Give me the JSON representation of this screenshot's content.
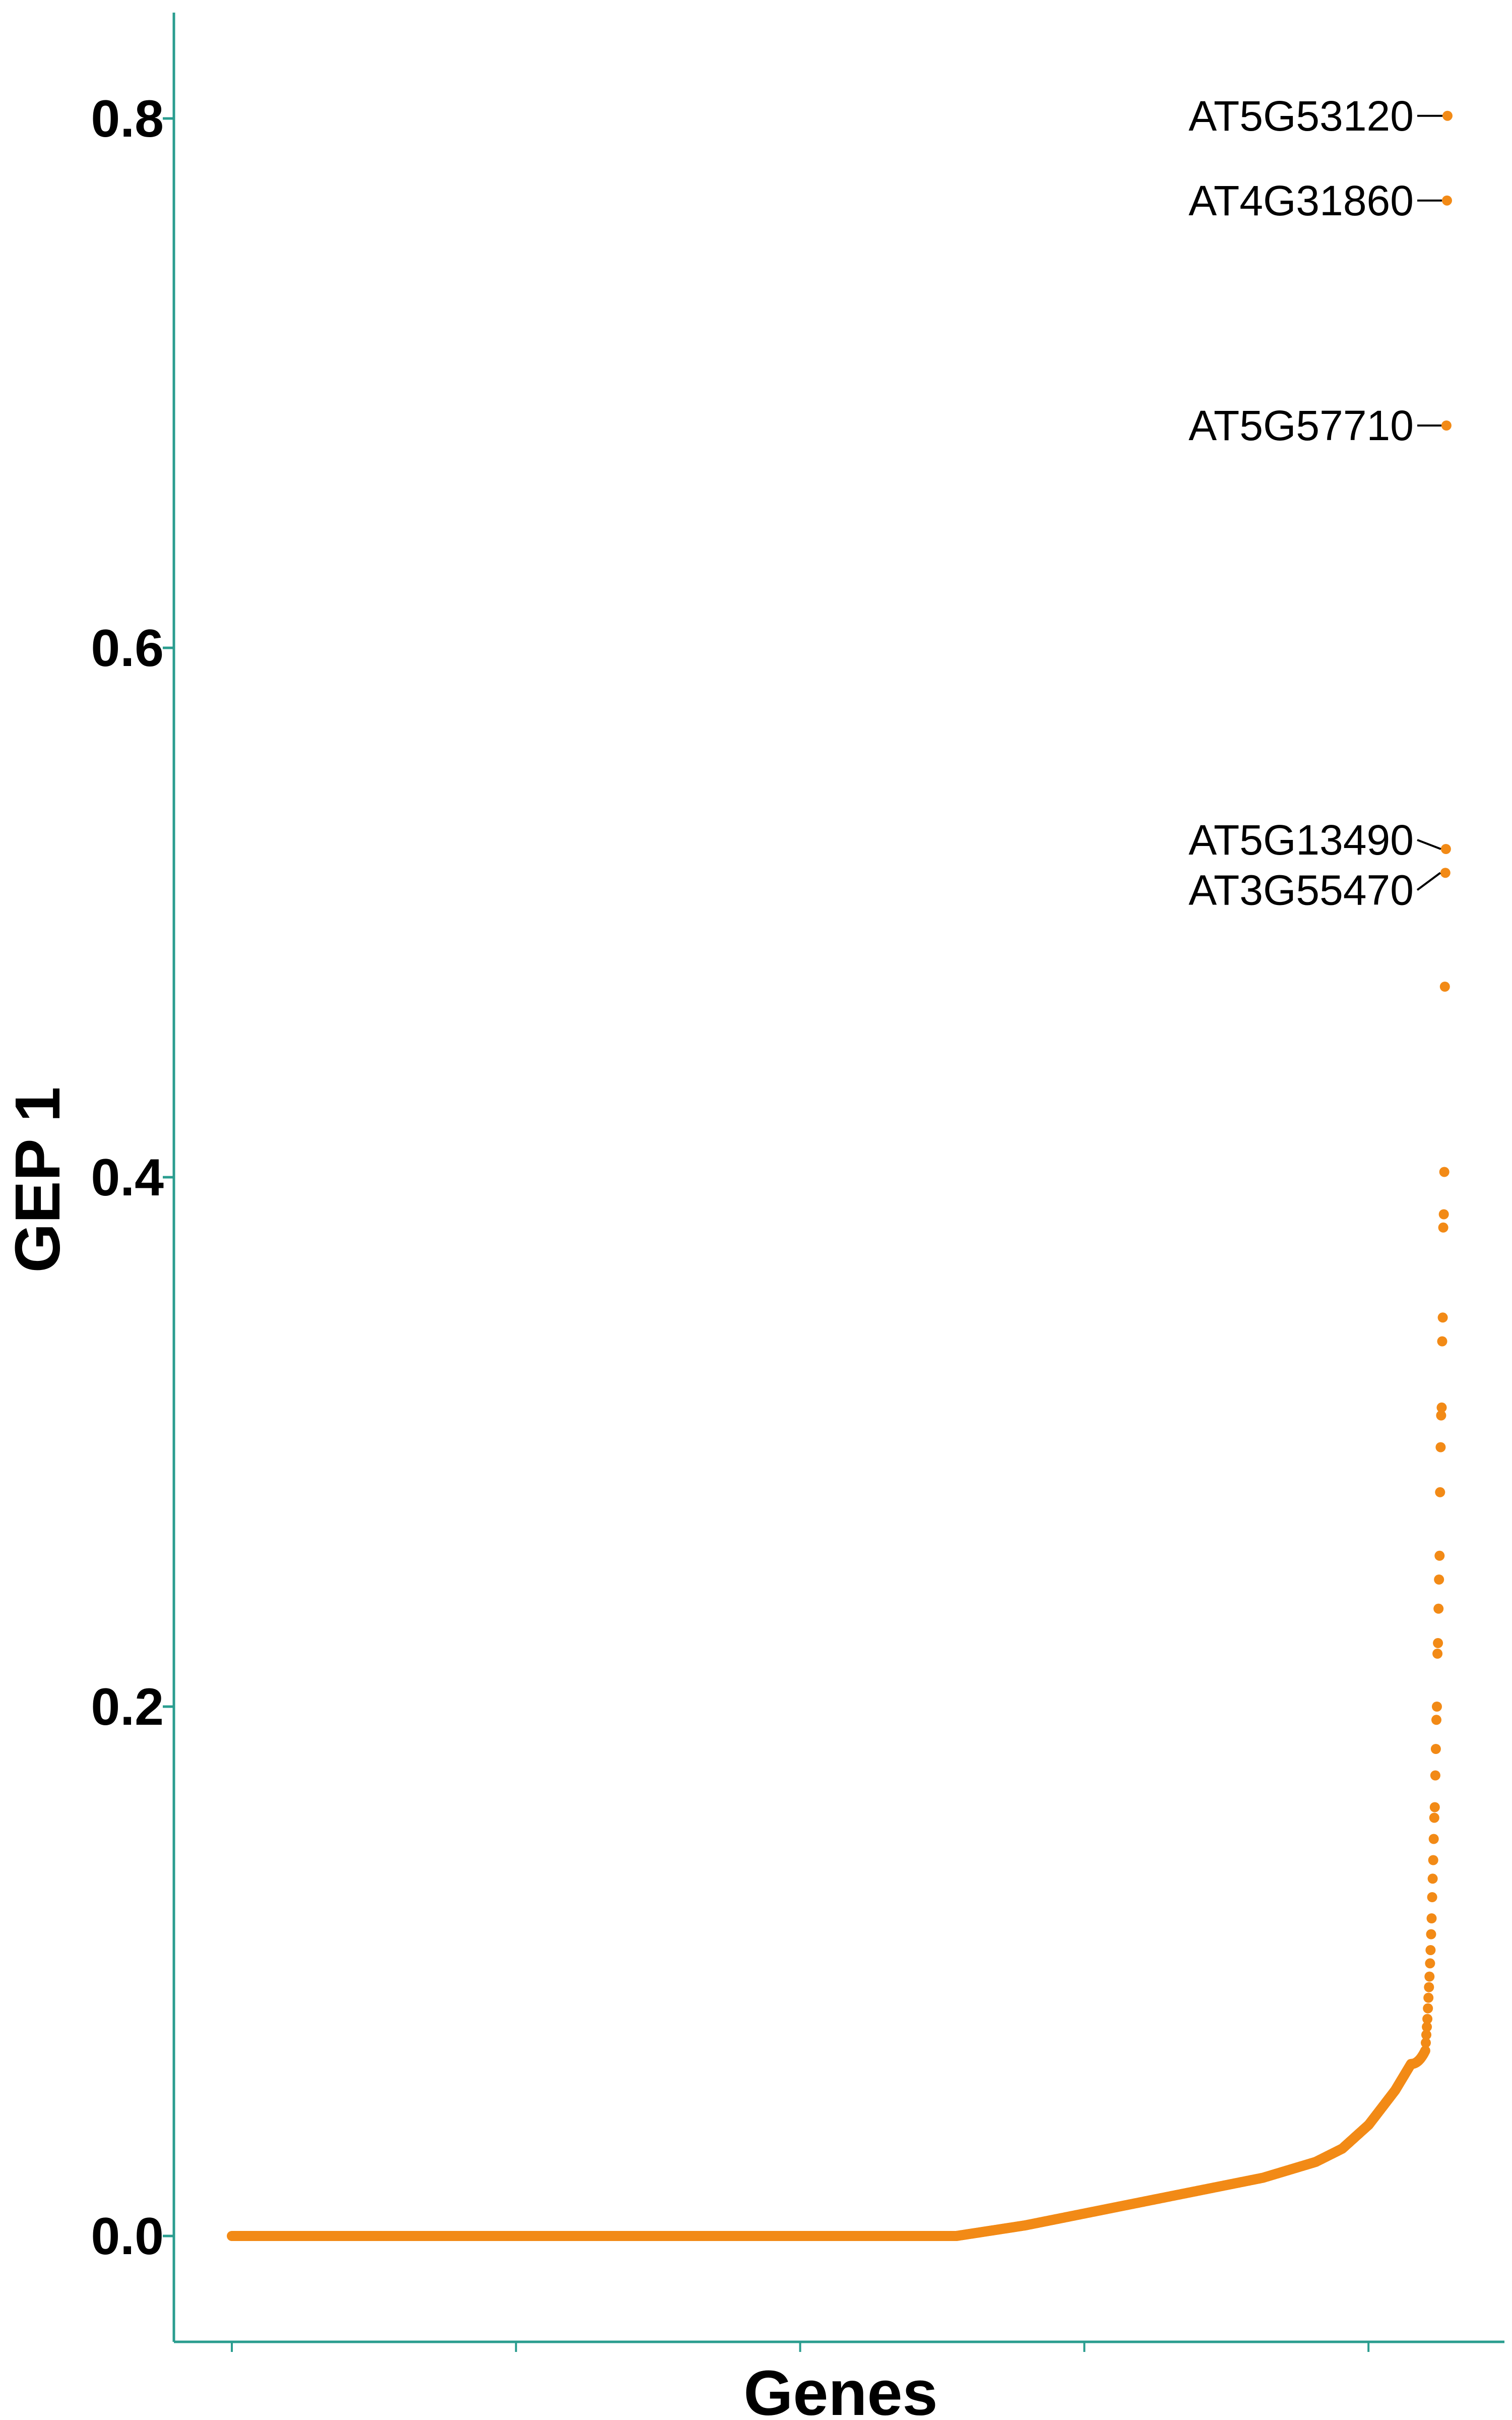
{
  "chart_data": {
    "type": "scatter",
    "xlabel": "Genes",
    "ylabel": "GEP 1",
    "ylim": [
      -0.04,
      0.84
    ],
    "y_ticks": [
      {
        "value": 0.0,
        "label": "0.0"
      },
      {
        "value": 0.2,
        "label": "0.2"
      },
      {
        "value": 0.4,
        "label": "0.4"
      },
      {
        "value": 0.6,
        "label": "0.6"
      },
      {
        "value": 0.8,
        "label": "0.8"
      }
    ],
    "x_tick_count": 5,
    "grid": false,
    "legend": "none",
    "point_color": "#F28A16",
    "axis_color": "#2A9D8F",
    "n_genes": 2300,
    "annotated_genes": [
      {
        "label": "AT5G53120",
        "value": 0.801
      },
      {
        "label": "AT4G31860",
        "value": 0.769
      },
      {
        "label": "AT5G57710",
        "value": 0.684
      },
      {
        "label": "AT5G13490",
        "value": 0.524
      },
      {
        "label": "AT3G55470",
        "value": 0.515
      }
    ],
    "upper_tail_values": [
      0.472,
      0.402,
      0.386,
      0.381,
      0.347,
      0.338,
      0.313,
      0.31,
      0.298,
      0.281,
      0.257,
      0.248,
      0.237,
      0.224,
      0.22,
      0.2,
      0.195,
      0.184,
      0.174,
      0.162,
      0.158,
      0.15,
      0.142,
      0.135,
      0.128,
      0.12,
      0.114,
      0.108,
      0.103,
      0.098,
      0.094,
      0.09,
      0.086,
      0.082,
      0.079,
      0.076,
      0.073,
      0.07
    ],
    "curve_profile": [
      {
        "rank": 0,
        "value": 0.0
      },
      {
        "rank": 1370,
        "value": 0.0
      },
      {
        "rank": 1500,
        "value": 0.004
      },
      {
        "rank": 1650,
        "value": 0.01
      },
      {
        "rank": 1800,
        "value": 0.016
      },
      {
        "rank": 1950,
        "value": 0.022
      },
      {
        "rank": 2050,
        "value": 0.028
      },
      {
        "rank": 2100,
        "value": 0.033
      },
      {
        "rank": 2150,
        "value": 0.042
      },
      {
        "rank": 2200,
        "value": 0.055
      },
      {
        "rank": 2230,
        "value": 0.065
      }
    ]
  }
}
